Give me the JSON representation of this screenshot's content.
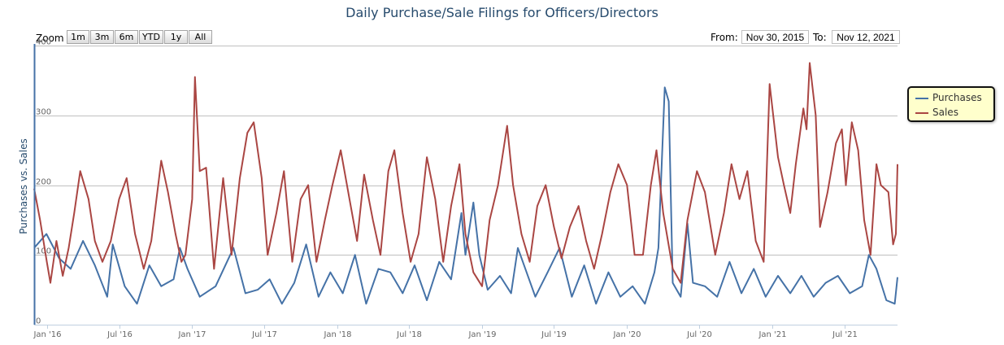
{
  "title": "Daily Purchase/Sale Filings for Officers/Directors",
  "range_selector": {
    "zoom_label": "Zoom",
    "buttons": [
      "1m",
      "3m",
      "6m",
      "YTD",
      "1y",
      "All"
    ],
    "from_label": "From:",
    "from_value": "Nov 30, 2015",
    "to_label": "To:",
    "to_value": "Nov 12, 2021"
  },
  "legend": {
    "items": [
      {
        "name": "Purchases",
        "color": "#4572a7"
      },
      {
        "name": "Sales",
        "color": "#aa4643"
      }
    ]
  },
  "chart_data": {
    "type": "line",
    "title": "Daily Purchase/Sale Filings for Officers/Directors",
    "ylabel": "Purchases vs. Sales",
    "xlabel": "",
    "ylim": [
      0,
      400
    ],
    "yticks": [
      0,
      100,
      200,
      300,
      400
    ],
    "xlim": [
      "2015-11-30",
      "2021-11-12"
    ],
    "xticks": [
      {
        "label": "Jan '16",
        "date": "2016-01-01"
      },
      {
        "label": "Jul '16",
        "date": "2016-07-01"
      },
      {
        "label": "Jan '17",
        "date": "2017-01-01"
      },
      {
        "label": "Jul '17",
        "date": "2017-07-01"
      },
      {
        "label": "Jan '18",
        "date": "2018-01-01"
      },
      {
        "label": "Jul '18",
        "date": "2018-07-01"
      },
      {
        "label": "Jan '19",
        "date": "2019-01-01"
      },
      {
        "label": "Jul '19",
        "date": "2019-07-01"
      },
      {
        "label": "Jan '20",
        "date": "2020-01-01"
      },
      {
        "label": "Jul '20",
        "date": "2020-07-01"
      },
      {
        "label": "Jan '21",
        "date": "2021-01-01"
      },
      {
        "label": "Jul '21",
        "date": "2021-07-01"
      }
    ],
    "grid": true,
    "legend_position": "right",
    "series": [
      {
        "name": "Purchases",
        "color": "#4572a7",
        "points": [
          [
            "2015-11-30",
            110
          ],
          [
            "2015-12-31",
            130
          ],
          [
            "2016-02-01",
            95
          ],
          [
            "2016-03-01",
            80
          ],
          [
            "2016-04-01",
            120
          ],
          [
            "2016-05-01",
            85
          ],
          [
            "2016-06-01",
            40
          ],
          [
            "2016-06-15",
            115
          ],
          [
            "2016-07-15",
            55
          ],
          [
            "2016-08-15",
            30
          ],
          [
            "2016-09-15",
            85
          ],
          [
            "2016-10-15",
            55
          ],
          [
            "2016-11-15",
            65
          ],
          [
            "2016-12-01",
            110
          ],
          [
            "2016-12-20",
            80
          ],
          [
            "2017-01-20",
            40
          ],
          [
            "2017-03-01",
            55
          ],
          [
            "2017-04-15",
            110
          ],
          [
            "2017-05-15",
            45
          ],
          [
            "2017-06-15",
            50
          ],
          [
            "2017-07-15",
            65
          ],
          [
            "2017-08-15",
            30
          ],
          [
            "2017-09-15",
            60
          ],
          [
            "2017-10-15",
            115
          ],
          [
            "2017-11-15",
            40
          ],
          [
            "2017-12-15",
            75
          ],
          [
            "2018-01-15",
            45
          ],
          [
            "2018-02-15",
            100
          ],
          [
            "2018-03-15",
            30
          ],
          [
            "2018-04-15",
            80
          ],
          [
            "2018-05-15",
            75
          ],
          [
            "2018-06-15",
            45
          ],
          [
            "2018-07-15",
            85
          ],
          [
            "2018-08-15",
            35
          ],
          [
            "2018-09-15",
            90
          ],
          [
            "2018-10-15",
            65
          ],
          [
            "2018-11-10",
            160
          ],
          [
            "2018-11-20",
            100
          ],
          [
            "2018-12-10",
            175
          ],
          [
            "2018-12-25",
            100
          ],
          [
            "2019-01-15",
            50
          ],
          [
            "2019-02-15",
            70
          ],
          [
            "2019-03-15",
            45
          ],
          [
            "2019-04-01",
            110
          ],
          [
            "2019-05-15",
            40
          ],
          [
            "2019-06-15",
            75
          ],
          [
            "2019-07-15",
            110
          ],
          [
            "2019-08-15",
            40
          ],
          [
            "2019-09-15",
            85
          ],
          [
            "2019-10-15",
            30
          ],
          [
            "2019-11-15",
            75
          ],
          [
            "2019-12-15",
            40
          ],
          [
            "2020-01-15",
            55
          ],
          [
            "2020-02-15",
            30
          ],
          [
            "2020-03-10",
            75
          ],
          [
            "2020-03-20",
            110
          ],
          [
            "2020-04-05",
            340
          ],
          [
            "2020-04-15",
            320
          ],
          [
            "2020-04-25",
            60
          ],
          [
            "2020-05-15",
            40
          ],
          [
            "2020-06-01",
            145
          ],
          [
            "2020-06-15",
            60
          ],
          [
            "2020-07-15",
            55
          ],
          [
            "2020-08-15",
            40
          ],
          [
            "2020-09-15",
            90
          ],
          [
            "2020-10-15",
            45
          ],
          [
            "2020-11-15",
            80
          ],
          [
            "2020-12-15",
            40
          ],
          [
            "2021-01-15",
            70
          ],
          [
            "2021-02-15",
            45
          ],
          [
            "2021-03-15",
            70
          ],
          [
            "2021-04-15",
            40
          ],
          [
            "2021-05-15",
            60
          ],
          [
            "2021-06-15",
            70
          ],
          [
            "2021-07-15",
            45
          ],
          [
            "2021-08-15",
            55
          ],
          [
            "2021-09-01",
            100
          ],
          [
            "2021-09-20",
            80
          ],
          [
            "2021-10-15",
            35
          ],
          [
            "2021-11-05",
            30
          ],
          [
            "2021-11-12",
            68
          ]
        ]
      },
      {
        "name": "Sales",
        "color": "#aa4643",
        "points": [
          [
            "2015-11-30",
            195
          ],
          [
            "2015-12-15",
            150
          ],
          [
            "2016-01-01",
            90
          ],
          [
            "2016-01-10",
            60
          ],
          [
            "2016-01-25",
            120
          ],
          [
            "2016-02-10",
            70
          ],
          [
            "2016-02-25",
            110
          ],
          [
            "2016-03-10",
            160
          ],
          [
            "2016-03-25",
            220
          ],
          [
            "2016-04-15",
            180
          ],
          [
            "2016-05-01",
            120
          ],
          [
            "2016-05-20",
            90
          ],
          [
            "2016-06-10",
            120
          ],
          [
            "2016-07-01",
            180
          ],
          [
            "2016-07-20",
            210
          ],
          [
            "2016-08-10",
            130
          ],
          [
            "2016-09-01",
            80
          ],
          [
            "2016-09-20",
            120
          ],
          [
            "2016-10-15",
            235
          ],
          [
            "2016-11-01",
            190
          ],
          [
            "2016-11-20",
            130
          ],
          [
            "2016-12-05",
            90
          ],
          [
            "2016-12-15",
            100
          ],
          [
            "2017-01-01",
            180
          ],
          [
            "2017-01-08",
            355
          ],
          [
            "2017-01-20",
            220
          ],
          [
            "2017-02-05",
            225
          ],
          [
            "2017-02-25",
            80
          ],
          [
            "2017-03-20",
            210
          ],
          [
            "2017-04-10",
            100
          ],
          [
            "2017-05-01",
            210
          ],
          [
            "2017-05-20",
            275
          ],
          [
            "2017-06-05",
            290
          ],
          [
            "2017-06-25",
            210
          ],
          [
            "2017-07-10",
            100
          ],
          [
            "2017-08-01",
            160
          ],
          [
            "2017-08-20",
            220
          ],
          [
            "2017-09-10",
            90
          ],
          [
            "2017-10-01",
            180
          ],
          [
            "2017-10-20",
            200
          ],
          [
            "2017-11-10",
            90
          ],
          [
            "2017-12-01",
            150
          ],
          [
            "2017-12-20",
            200
          ],
          [
            "2018-01-10",
            250
          ],
          [
            "2018-02-01",
            180
          ],
          [
            "2018-02-20",
            120
          ],
          [
            "2018-03-10",
            215
          ],
          [
            "2018-04-01",
            150
          ],
          [
            "2018-04-20",
            100
          ],
          [
            "2018-05-10",
            220
          ],
          [
            "2018-05-25",
            250
          ],
          [
            "2018-06-15",
            160
          ],
          [
            "2018-07-05",
            90
          ],
          [
            "2018-07-25",
            130
          ],
          [
            "2018-08-15",
            240
          ],
          [
            "2018-09-05",
            180
          ],
          [
            "2018-09-25",
            90
          ],
          [
            "2018-10-15",
            170
          ],
          [
            "2018-11-05",
            230
          ],
          [
            "2018-11-20",
            130
          ],
          [
            "2018-12-10",
            75
          ],
          [
            "2019-01-01",
            55
          ],
          [
            "2019-01-20",
            150
          ],
          [
            "2019-02-10",
            200
          ],
          [
            "2019-03-05",
            285
          ],
          [
            "2019-03-20",
            200
          ],
          [
            "2019-04-10",
            130
          ],
          [
            "2019-05-01",
            90
          ],
          [
            "2019-05-20",
            170
          ],
          [
            "2019-06-10",
            200
          ],
          [
            "2019-07-01",
            140
          ],
          [
            "2019-07-20",
            95
          ],
          [
            "2019-08-10",
            140
          ],
          [
            "2019-09-01",
            170
          ],
          [
            "2019-09-20",
            120
          ],
          [
            "2019-10-10",
            80
          ],
          [
            "2019-10-30",
            130
          ],
          [
            "2019-11-20",
            190
          ],
          [
            "2019-12-10",
            230
          ],
          [
            "2020-01-01",
            200
          ],
          [
            "2020-01-20",
            100
          ],
          [
            "2020-02-10",
            100
          ],
          [
            "2020-03-01",
            200
          ],
          [
            "2020-03-15",
            250
          ],
          [
            "2020-04-01",
            160
          ],
          [
            "2020-04-25",
            80
          ],
          [
            "2020-05-15",
            60
          ],
          [
            "2020-06-01",
            150
          ],
          [
            "2020-06-25",
            220
          ],
          [
            "2020-07-15",
            190
          ],
          [
            "2020-08-10",
            100
          ],
          [
            "2020-09-01",
            160
          ],
          [
            "2020-09-20",
            230
          ],
          [
            "2020-10-10",
            180
          ],
          [
            "2020-10-30",
            220
          ],
          [
            "2020-11-20",
            120
          ],
          [
            "2020-12-10",
            90
          ],
          [
            "2020-12-25",
            345
          ],
          [
            "2021-01-15",
            240
          ],
          [
            "2021-01-30",
            200
          ],
          [
            "2021-02-15",
            160
          ],
          [
            "2021-03-01",
            230
          ],
          [
            "2021-03-20",
            310
          ],
          [
            "2021-03-28",
            280
          ],
          [
            "2021-04-05",
            375
          ],
          [
            "2021-04-20",
            300
          ],
          [
            "2021-05-01",
            140
          ],
          [
            "2021-05-20",
            190
          ],
          [
            "2021-06-10",
            260
          ],
          [
            "2021-06-25",
            280
          ],
          [
            "2021-07-05",
            200
          ],
          [
            "2021-07-20",
            290
          ],
          [
            "2021-08-05",
            250
          ],
          [
            "2021-08-20",
            150
          ],
          [
            "2021-09-05",
            100
          ],
          [
            "2021-09-20",
            230
          ],
          [
            "2021-10-01",
            200
          ],
          [
            "2021-10-20",
            190
          ],
          [
            "2021-11-01",
            115
          ],
          [
            "2021-11-08",
            130
          ],
          [
            "2021-11-12",
            230
          ]
        ]
      }
    ]
  }
}
